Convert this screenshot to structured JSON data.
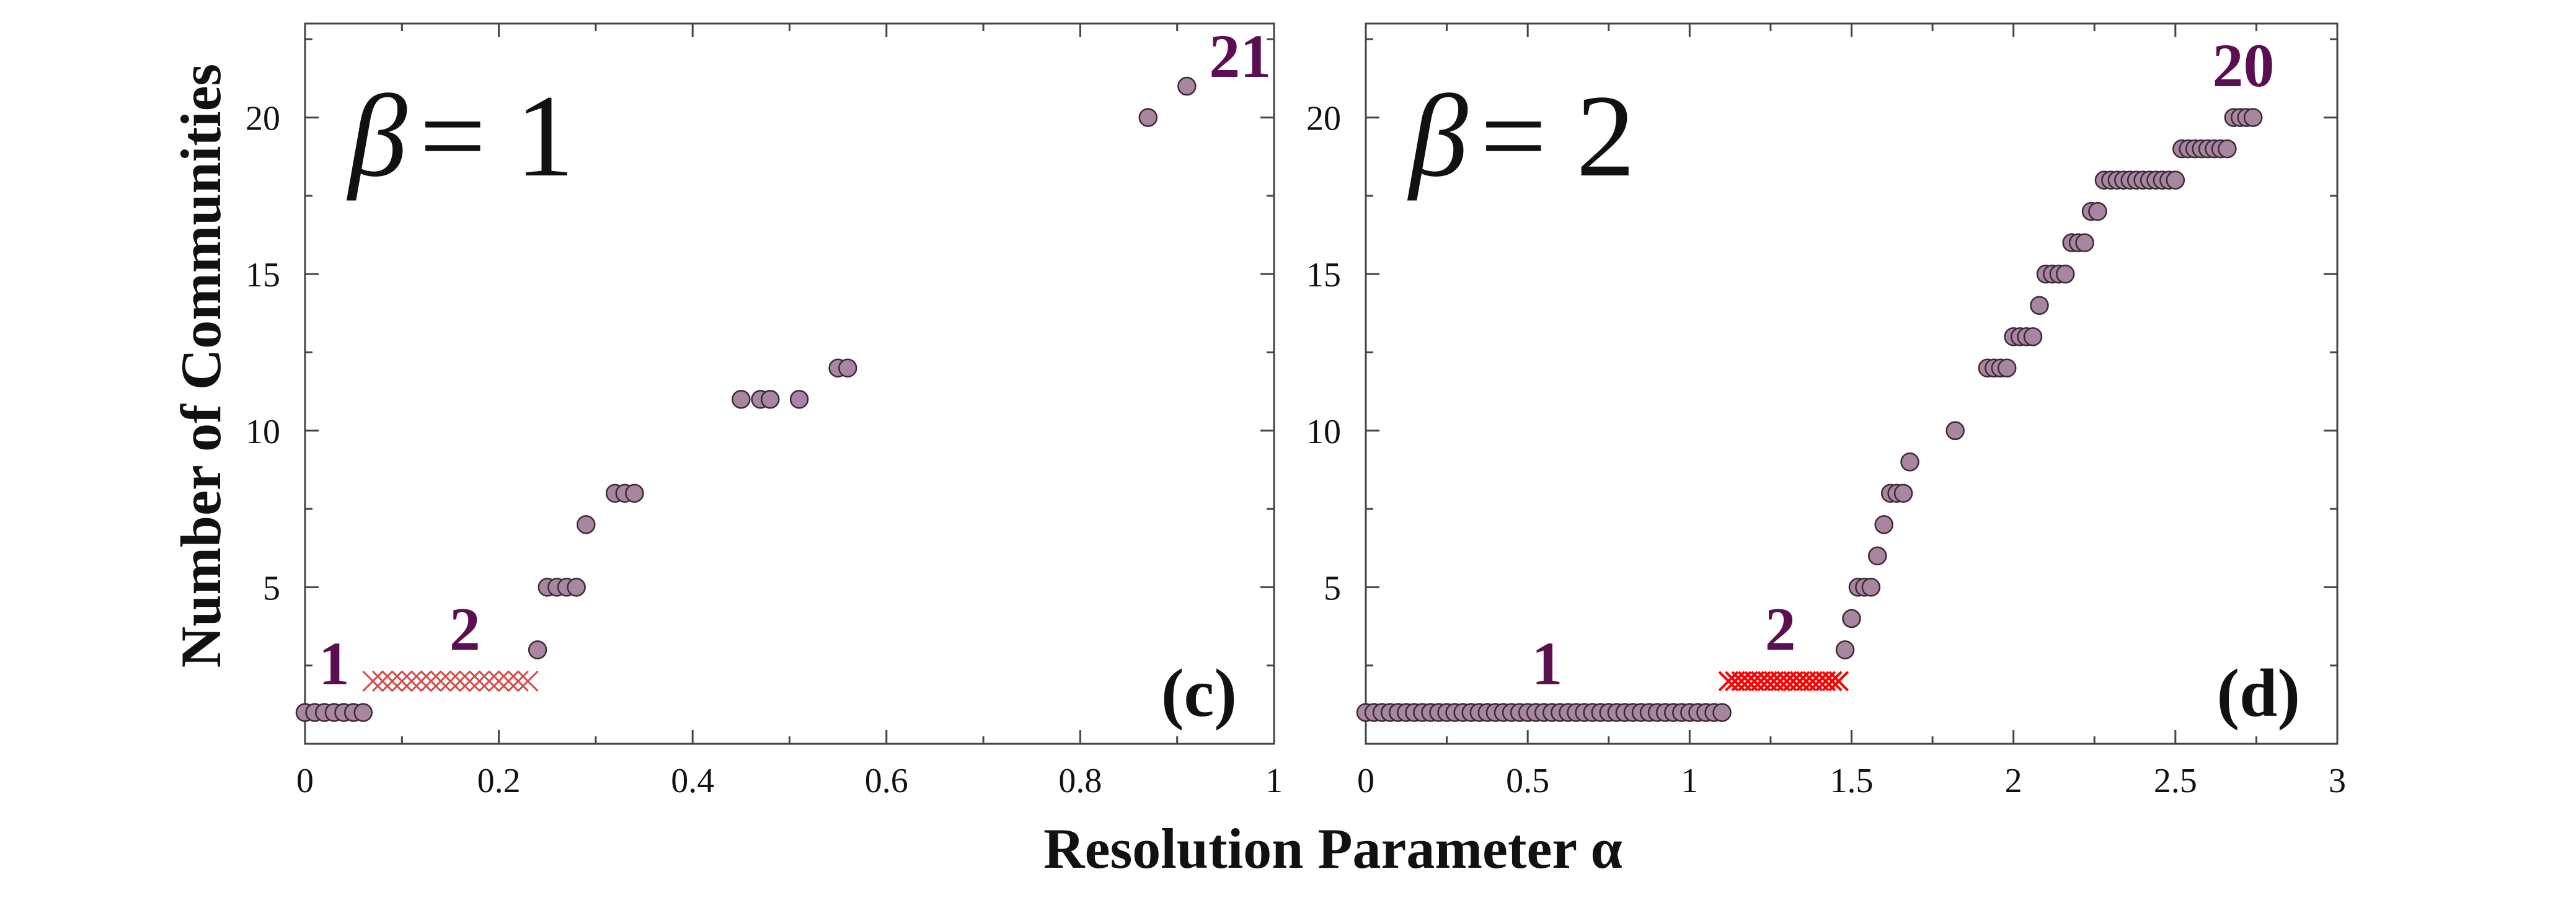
{
  "figure": {
    "ylabel": "Number of Communities",
    "xlabel": "Resolution Parameter  α",
    "colors": {
      "marker_fill": "#a8869f",
      "marker_edge": "#3a2a36",
      "annotation": "#5a1050",
      "cross_c": "#d44a4a",
      "cross_d": "#ff0000"
    }
  },
  "chart_data": [
    {
      "type": "scatter",
      "panel_tag": "(c)",
      "title": "β = 1",
      "beta_symbol": "β",
      "beta_eq": "= 1",
      "xlim": [
        0,
        1
      ],
      "ylim": [
        0,
        23
      ],
      "xticks": [
        0,
        0.2,
        0.4,
        0.6,
        0.8,
        1
      ],
      "xtick_labels": [
        "0",
        "0.2",
        "0.4",
        "0.6",
        "0.8",
        "1"
      ],
      "yticks": [
        5,
        10,
        15,
        20
      ],
      "ytick_labels": [
        "5",
        "10",
        "15",
        "20"
      ],
      "series": [
        {
          "name": "communities",
          "marker": "circle",
          "x": [
            0.0,
            0.01,
            0.02,
            0.03,
            0.04,
            0.05,
            0.06,
            0.24,
            0.25,
            0.26,
            0.27,
            0.28,
            0.29,
            0.32,
            0.33,
            0.34,
            0.45,
            0.47,
            0.48,
            0.51,
            0.55,
            0.56,
            0.87,
            0.91
          ],
          "y": [
            1,
            1,
            1,
            1,
            1,
            1,
            1,
            3,
            5,
            5,
            5,
            5,
            7,
            8,
            8,
            8,
            11,
            11,
            11,
            11,
            12,
            12,
            20,
            21
          ]
        },
        {
          "name": "ambiguous two-community region",
          "marker": "cross",
          "x": [
            0.07,
            0.08,
            0.09,
            0.1,
            0.11,
            0.12,
            0.13,
            0.14,
            0.15,
            0.16,
            0.17,
            0.18,
            0.19,
            0.2,
            0.21,
            0.22,
            0.23
          ],
          "y": [
            2,
            2,
            2,
            2,
            2,
            2,
            2,
            2,
            2,
            2,
            2,
            2,
            2,
            2,
            2,
            2,
            2
          ]
        }
      ],
      "annotations": [
        {
          "text": "1",
          "x": 0.03,
          "y": 1.9
        },
        {
          "text": "2",
          "x": 0.165,
          "y": 3.0
        },
        {
          "text": "21",
          "x": 0.965,
          "y": 21.3
        }
      ]
    },
    {
      "type": "scatter",
      "panel_tag": "(d)",
      "title": "β = 2",
      "beta_symbol": "β",
      "beta_eq": "= 2",
      "xlim": [
        0,
        3
      ],
      "ylim": [
        0,
        23
      ],
      "xticks": [
        0,
        0.5,
        1,
        1.5,
        2,
        2.5,
        3
      ],
      "xtick_labels": [
        "0",
        "0.5",
        "1",
        "1.5",
        "2",
        "2.5",
        "3"
      ],
      "yticks": [
        5,
        10,
        15,
        20
      ],
      "ytick_labels": [
        "5",
        "10",
        "15",
        "20"
      ],
      "series": [
        {
          "name": "communities",
          "marker": "circle",
          "x": [
            0.0,
            0.025,
            0.05,
            0.075,
            0.1,
            0.125,
            0.15,
            0.175,
            0.2,
            0.225,
            0.25,
            0.275,
            0.3,
            0.325,
            0.35,
            0.375,
            0.4,
            0.425,
            0.45,
            0.475,
            0.5,
            0.525,
            0.55,
            0.575,
            0.6,
            0.625,
            0.65,
            0.675,
            0.7,
            0.725,
            0.75,
            0.775,
            0.8,
            0.825,
            0.85,
            0.875,
            0.9,
            0.925,
            0.95,
            0.975,
            1.0,
            1.025,
            1.05,
            1.075,
            1.1,
            1.48,
            1.5,
            1.52,
            1.54,
            1.56,
            1.58,
            1.6,
            1.62,
            1.64,
            1.66,
            1.68,
            1.82,
            1.92,
            1.94,
            1.96,
            1.98,
            2.0,
            2.02,
            2.04,
            2.06,
            2.08,
            2.1,
            2.12,
            2.14,
            2.16,
            2.18,
            2.2,
            2.22,
            2.24,
            2.26,
            2.28,
            2.3,
            2.32,
            2.34,
            2.36,
            2.38,
            2.4,
            2.42,
            2.44,
            2.46,
            2.48,
            2.5,
            2.52,
            2.54,
            2.56,
            2.58,
            2.6,
            2.62,
            2.64,
            2.66,
            2.68,
            2.7,
            2.72,
            2.74
          ],
          "y": [
            1,
            1,
            1,
            1,
            1,
            1,
            1,
            1,
            1,
            1,
            1,
            1,
            1,
            1,
            1,
            1,
            1,
            1,
            1,
            1,
            1,
            1,
            1,
            1,
            1,
            1,
            1,
            1,
            1,
            1,
            1,
            1,
            1,
            1,
            1,
            1,
            1,
            1,
            1,
            1,
            1,
            1,
            1,
            1,
            1,
            3,
            4,
            5,
            5,
            5,
            6,
            7,
            8,
            8,
            8,
            9,
            10,
            12,
            12,
            12,
            12,
            13,
            13,
            13,
            13,
            14,
            15,
            15,
            15,
            15,
            16,
            16,
            16,
            17,
            17,
            18,
            18,
            18,
            18,
            18,
            18,
            18,
            18,
            18,
            18,
            18,
            18,
            19,
            19,
            19,
            19,
            19,
            19,
            19,
            19,
            20,
            20,
            20,
            20
          ]
        },
        {
          "name": "ambiguous two-community region",
          "marker": "cross",
          "x": [
            1.12,
            1.14,
            1.16,
            1.18,
            1.2,
            1.22,
            1.24,
            1.26,
            1.28,
            1.3,
            1.32,
            1.34,
            1.36,
            1.38,
            1.4,
            1.42,
            1.44,
            1.46
          ],
          "y": [
            2,
            2,
            2,
            2,
            2,
            2,
            2,
            2,
            2,
            2,
            2,
            2,
            2,
            2,
            2,
            2,
            2,
            2
          ]
        }
      ],
      "annotations": [
        {
          "text": "1",
          "x": 0.56,
          "y": 1.9
        },
        {
          "text": "2",
          "x": 1.28,
          "y": 3.0
        },
        {
          "text": "20",
          "x": 2.71,
          "y": 21.0
        }
      ]
    }
  ]
}
